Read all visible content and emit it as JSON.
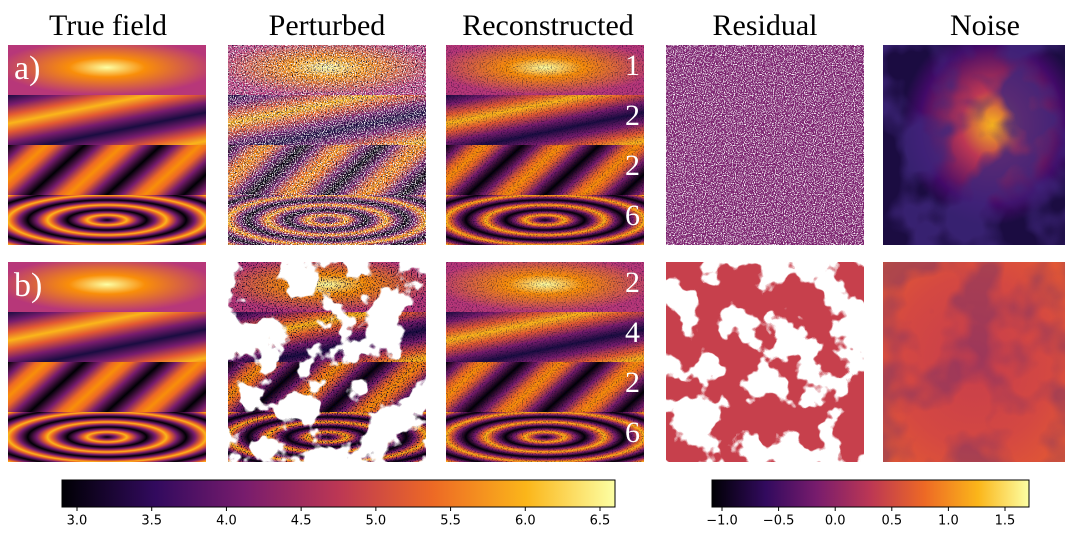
{
  "header": {
    "columns": [
      "True  field",
      "Perturbed",
      "Reconstructed",
      "Residual",
      "Noise"
    ]
  },
  "rows": [
    {
      "label": "a)",
      "numbers": [
        "1",
        "2",
        "2",
        "6"
      ]
    },
    {
      "label": "b)",
      "numbers": [
        "2",
        "4",
        "2",
        "6"
      ]
    }
  ],
  "colorbars": [
    {
      "ticks": [
        "3.0",
        "3.5",
        "4.0",
        "4.5",
        "5.0",
        "5.5",
        "6.0",
        "6.5"
      ]
    },
    {
      "ticks": [
        "−1.0",
        "−0.5",
        "0.0",
        "0.5",
        "1.0",
        "1.5"
      ]
    }
  ]
}
